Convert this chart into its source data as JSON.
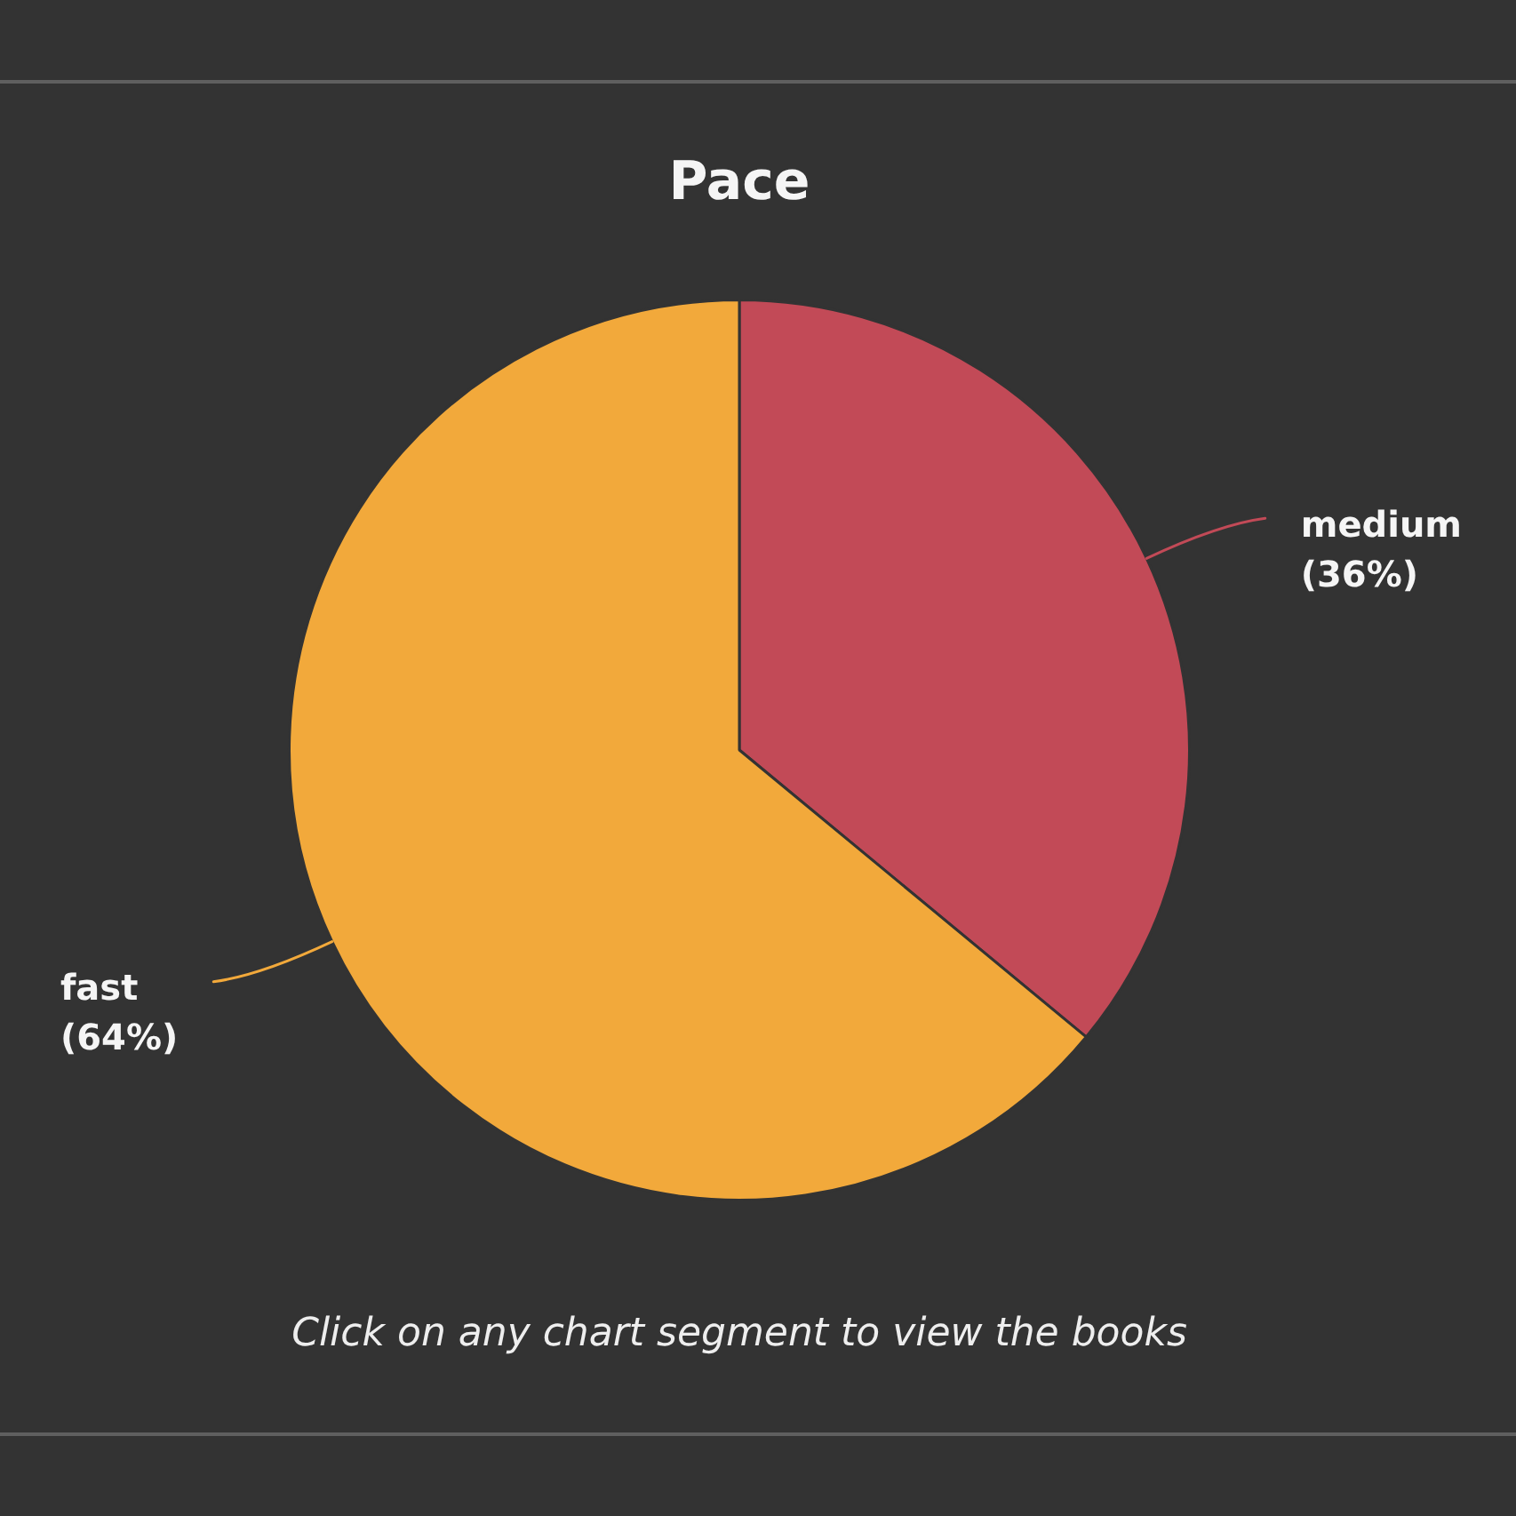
{
  "chart_data": {
    "type": "pie",
    "title": "Pace",
    "categories": [
      "medium",
      "fast"
    ],
    "values": [
      36,
      64
    ],
    "colors": [
      "#c24a57",
      "#f2a93b"
    ],
    "value_labels": [
      "(36%)",
      "(64%)"
    ],
    "annotations": [
      "Click on any chart segment to view the books"
    ]
  }
}
